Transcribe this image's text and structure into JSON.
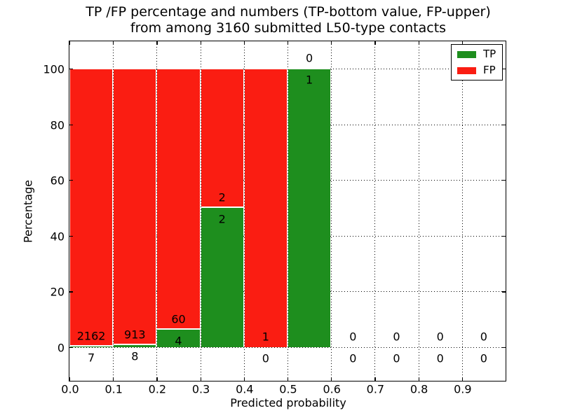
{
  "title": {
    "line1": "TP /FP percentage and numbers (TP-bottom value, FP-upper)",
    "line2": "from among 3160 submitted L50-type contacts"
  },
  "chart_data": {
    "type": "bar",
    "stacked": true,
    "title": "TP /FP percentage and numbers (TP-bottom value, FP-upper) from among 3160 submitted L50-type contacts",
    "xlabel": "Predicted probability",
    "ylabel": "Percentage",
    "x_tick_labels": [
      "0.0",
      "0.1",
      "0.2",
      "0.3",
      "0.4",
      "0.5",
      "0.6",
      "0.7",
      "0.8",
      "0.9"
    ],
    "y_tick_values": [
      0,
      20,
      40,
      60,
      80,
      100
    ],
    "xlim": [
      0.0,
      1.0
    ],
    "ylim": [
      -12,
      110
    ],
    "grid": "dotted",
    "total_contacts": 3160,
    "legend": {
      "position": "upper right",
      "entries": [
        {
          "label": "TP",
          "color": "#1e8e1e"
        },
        {
          "label": "FP",
          "color": "#fa1d12"
        }
      ]
    },
    "bins": [
      {
        "x_start": 0.0,
        "x_end": 0.1,
        "tp": 7,
        "fp": 2162
      },
      {
        "x_start": 0.1,
        "x_end": 0.2,
        "tp": 8,
        "fp": 913
      },
      {
        "x_start": 0.2,
        "x_end": 0.3,
        "tp": 4,
        "fp": 60
      },
      {
        "x_start": 0.3,
        "x_end": 0.4,
        "tp": 2,
        "fp": 2
      },
      {
        "x_start": 0.4,
        "x_end": 0.5,
        "tp": 0,
        "fp": 1
      },
      {
        "x_start": 0.5,
        "x_end": 0.6,
        "tp": 1,
        "fp": 0
      },
      {
        "x_start": 0.6,
        "x_end": 0.7,
        "tp": 0,
        "fp": 0
      },
      {
        "x_start": 0.7,
        "x_end": 0.8,
        "tp": 0,
        "fp": 0
      },
      {
        "x_start": 0.8,
        "x_end": 0.9,
        "tp": 0,
        "fp": 0
      },
      {
        "x_start": 0.9,
        "x_end": 1.0,
        "tp": 0,
        "fp": 0
      }
    ]
  },
  "colors": {
    "tp_green": "#1e8e1e",
    "fp_red": "#fa1d12",
    "grid": "#000000",
    "background": "#ffffff"
  }
}
